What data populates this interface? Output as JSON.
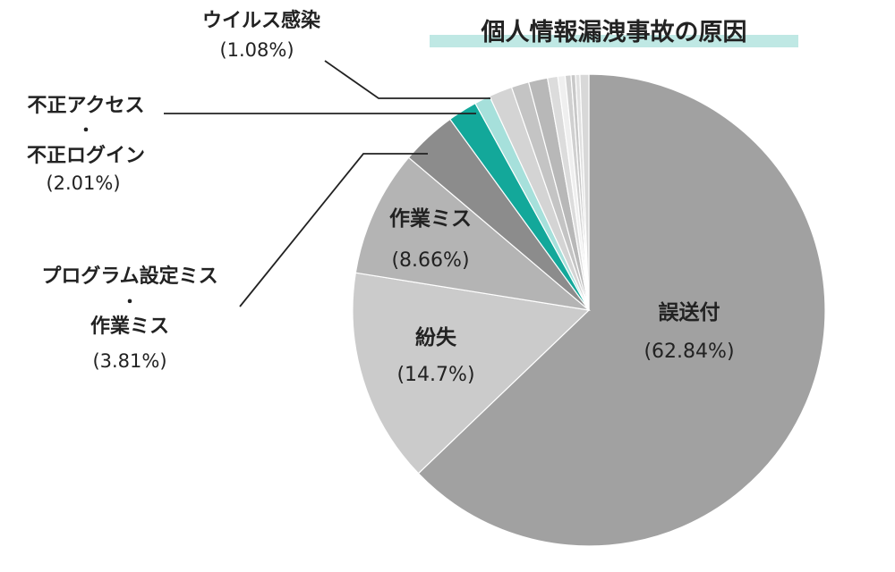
{
  "chart_data": {
    "type": "pie",
    "title": "個人情報漏洩事故の原因",
    "colors": {
      "title_band": "#bfe8e4",
      "leader": "#222222",
      "slice_border": "#ffffff"
    },
    "slices": [
      {
        "label": "誤送付",
        "value_label": "(62.84%)",
        "value": 62.84,
        "color": "#a1a1a1"
      },
      {
        "label": "紛失",
        "value_label": "(14.7%)",
        "value": 14.7,
        "color": "#cbcbcb"
      },
      {
        "label": "作業ミス",
        "value_label": "(8.66%)",
        "value": 8.66,
        "color": "#b4b4b4"
      },
      {
        "label": "プログラム設定ミス・作業ミス",
        "value_label": "(3.81%)",
        "value": 3.81,
        "color": "#8c8c8c"
      },
      {
        "label": "不正アクセス・不正ログイン",
        "value_label": "(2.01%)",
        "value": 2.01,
        "color": "#13a89a"
      },
      {
        "label": "ウイルス感染",
        "value_label": "(1.08%)",
        "value": 1.08,
        "color": "#a6e0db"
      },
      {
        "label": "",
        "value": 1.6,
        "color": "#d4d4d4"
      },
      {
        "label": "",
        "value": 1.2,
        "color": "#c4c4c4"
      },
      {
        "label": "",
        "value": 1.3,
        "color": "#b8b8b8"
      },
      {
        "label": "",
        "value": 0.7,
        "color": "#dcdcdc"
      },
      {
        "label": "",
        "value": 0.5,
        "color": "#efefef"
      },
      {
        "label": "",
        "value": 0.4,
        "color": "#d0d0d0"
      },
      {
        "label": "",
        "value": 0.3,
        "color": "#c8c8c8"
      },
      {
        "label": "",
        "value": 0.3,
        "color": "#e0e0e0"
      },
      {
        "label": "",
        "value": 0.61,
        "color": "#d8d8d8"
      }
    ],
    "labels": {
      "inside_1": {
        "text": "誤送付",
        "value": "(62.84%)"
      },
      "inside_2": {
        "text": "紛失",
        "value": "(14.7%)"
      },
      "inside_3": {
        "text": "作業ミス",
        "value": "(8.66%)"
      },
      "callout_virus": {
        "line1": "ウイルス感染",
        "value": "(1.08%)"
      },
      "callout_access": {
        "line1": "不正アクセス",
        "dot": "・",
        "line2": "不正ログイン",
        "value": "(2.01%)"
      },
      "callout_program": {
        "line1": "プログラム設定ミス",
        "dot": "・",
        "line2": "作業ミス",
        "value": "(3.81%)"
      }
    }
  }
}
